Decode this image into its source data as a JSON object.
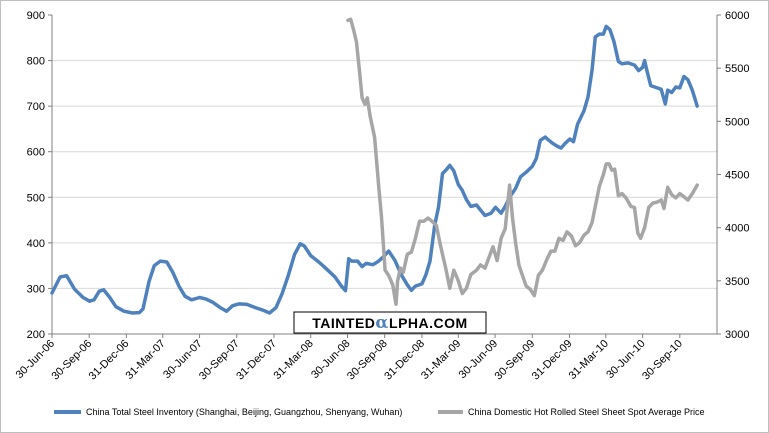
{
  "chart_data": {
    "type": "line",
    "title": "",
    "xlabel": "",
    "ylabel": "",
    "ylim": [
      200,
      900
    ],
    "y2lim": [
      3000,
      6000
    ],
    "yticks": [
      "900",
      "800",
      "700",
      "600",
      "500",
      "400",
      "300",
      "200"
    ],
    "y2ticks": [
      "6000",
      "5500",
      "5000",
      "4500",
      "4000",
      "3500",
      "3000"
    ],
    "x_range": [
      "2006-06-30",
      "2010-12-31"
    ],
    "grid": "horizontal",
    "legend_position": "bottom",
    "x_ticks": [
      {
        "date": "2006-06-30",
        "label": "30-Jun-06"
      },
      {
        "date": "2006-09-30",
        "label": "30-Sep-06"
      },
      {
        "date": "2006-12-31",
        "label": "31-Dec-06"
      },
      {
        "date": "2007-03-31",
        "label": "31-Mar-07"
      },
      {
        "date": "2007-06-30",
        "label": "30-Jun-07"
      },
      {
        "date": "2007-09-30",
        "label": "30-Sep-07"
      },
      {
        "date": "2007-12-31",
        "label": "31-Dec-07"
      },
      {
        "date": "2008-03-31",
        "label": "31-Mar-08"
      },
      {
        "date": "2008-06-30",
        "label": "30-Jun-08"
      },
      {
        "date": "2008-09-30",
        "label": "30-Sep-08"
      },
      {
        "date": "2008-12-31",
        "label": "31-Dec-08"
      },
      {
        "date": "2009-03-31",
        "label": "31-Mar-09"
      },
      {
        "date": "2009-06-30",
        "label": "30-Jun-09"
      },
      {
        "date": "2009-09-30",
        "label": "30-Sep-09"
      },
      {
        "date": "2009-12-31",
        "label": "31-Dec-09"
      },
      {
        "date": "2010-03-31",
        "label": "31-Mar-10"
      },
      {
        "date": "2010-06-30",
        "label": "30-Jun-10"
      },
      {
        "date": "2010-09-30",
        "label": "30-Sep-10"
      }
    ],
    "series": [
      {
        "name": "China Total Steel Inventory (Shanghai, Beijing, Guangzhou, Shenyang, Wuhan)",
        "axis": "left",
        "color": "#4f81bd",
        "points": [
          [
            "2006-06-30",
            290
          ],
          [
            "2006-07-20",
            325
          ],
          [
            "2006-08-05",
            328
          ],
          [
            "2006-08-25",
            298
          ],
          [
            "2006-09-15",
            280
          ],
          [
            "2006-10-01",
            272
          ],
          [
            "2006-10-12",
            275
          ],
          [
            "2006-10-25",
            294
          ],
          [
            "2006-11-05",
            297
          ],
          [
            "2006-11-20",
            280
          ],
          [
            "2006-12-05",
            260
          ],
          [
            "2006-12-25",
            250
          ],
          [
            "2007-01-15",
            246
          ],
          [
            "2007-02-01",
            247
          ],
          [
            "2007-02-10",
            255
          ],
          [
            "2007-02-25",
            315
          ],
          [
            "2007-03-10",
            350
          ],
          [
            "2007-03-25",
            360
          ],
          [
            "2007-04-10",
            358
          ],
          [
            "2007-04-25",
            335
          ],
          [
            "2007-05-10",
            305
          ],
          [
            "2007-05-25",
            283
          ],
          [
            "2007-06-10",
            275
          ],
          [
            "2007-06-30",
            280
          ],
          [
            "2007-07-15",
            277
          ],
          [
            "2007-08-01",
            270
          ],
          [
            "2007-08-20",
            258
          ],
          [
            "2007-09-05",
            250
          ],
          [
            "2007-09-20",
            262
          ],
          [
            "2007-10-05",
            266
          ],
          [
            "2007-10-25",
            265
          ],
          [
            "2007-11-15",
            258
          ],
          [
            "2007-12-05",
            252
          ],
          [
            "2007-12-20",
            246
          ],
          [
            "2008-01-05",
            258
          ],
          [
            "2008-01-20",
            288
          ],
          [
            "2008-02-05",
            330
          ],
          [
            "2008-02-20",
            375
          ],
          [
            "2008-03-05",
            398
          ],
          [
            "2008-03-15",
            393
          ],
          [
            "2008-03-31",
            372
          ],
          [
            "2008-04-20",
            358
          ],
          [
            "2008-05-10",
            342
          ],
          [
            "2008-05-30",
            325
          ],
          [
            "2008-06-15",
            305
          ],
          [
            "2008-06-25",
            295
          ],
          [
            "2008-07-03",
            365
          ],
          [
            "2008-07-10",
            360
          ],
          [
            "2008-07-25",
            360
          ],
          [
            "2008-08-05",
            348
          ],
          [
            "2008-08-15",
            355
          ],
          [
            "2008-09-01",
            352
          ],
          [
            "2008-09-15",
            360
          ],
          [
            "2008-09-25",
            368
          ],
          [
            "2008-10-10",
            382
          ],
          [
            "2008-10-25",
            362
          ],
          [
            "2008-11-10",
            330
          ],
          [
            "2008-11-25",
            308
          ],
          [
            "2008-12-05",
            296
          ],
          [
            "2008-12-15",
            305
          ],
          [
            "2008-12-31",
            310
          ],
          [
            "2009-01-10",
            330
          ],
          [
            "2009-01-20",
            360
          ],
          [
            "2009-02-01",
            440
          ],
          [
            "2009-02-10",
            478
          ],
          [
            "2009-02-20",
            552
          ],
          [
            "2009-03-01",
            560
          ],
          [
            "2009-03-10",
            570
          ],
          [
            "2009-03-20",
            558
          ],
          [
            "2009-03-31",
            528
          ],
          [
            "2009-04-10",
            515
          ],
          [
            "2009-04-20",
            495
          ],
          [
            "2009-05-01",
            480
          ],
          [
            "2009-05-15",
            483
          ],
          [
            "2009-05-25",
            472
          ],
          [
            "2009-06-05",
            460
          ],
          [
            "2009-06-20",
            465
          ],
          [
            "2009-07-01",
            478
          ],
          [
            "2009-07-15",
            465
          ],
          [
            "2009-07-25",
            480
          ],
          [
            "2009-08-05",
            500
          ],
          [
            "2009-08-20",
            520
          ],
          [
            "2009-09-01",
            545
          ],
          [
            "2009-09-15",
            555
          ],
          [
            "2009-09-30",
            568
          ],
          [
            "2009-10-10",
            585
          ],
          [
            "2009-10-20",
            625
          ],
          [
            "2009-11-01",
            632
          ],
          [
            "2009-11-10",
            625
          ],
          [
            "2009-11-20",
            618
          ],
          [
            "2009-12-01",
            612
          ],
          [
            "2009-12-10",
            608
          ],
          [
            "2009-12-20",
            618
          ],
          [
            "2010-01-01",
            628
          ],
          [
            "2010-01-10",
            622
          ],
          [
            "2010-01-20",
            660
          ],
          [
            "2010-02-05",
            690
          ],
          [
            "2010-02-15",
            720
          ],
          [
            "2010-02-25",
            780
          ],
          [
            "2010-03-05",
            852
          ],
          [
            "2010-03-15",
            858
          ],
          [
            "2010-03-25",
            858
          ],
          [
            "2010-04-01",
            875
          ],
          [
            "2010-04-10",
            868
          ],
          [
            "2010-04-20",
            842
          ],
          [
            "2010-05-01",
            798
          ],
          [
            "2010-05-10",
            793
          ],
          [
            "2010-05-25",
            795
          ],
          [
            "2010-06-10",
            790
          ],
          [
            "2010-06-20",
            778
          ],
          [
            "2010-06-30",
            785
          ],
          [
            "2010-07-05",
            800
          ],
          [
            "2010-07-10",
            780
          ],
          [
            "2010-07-20",
            745
          ],
          [
            "2010-08-05",
            740
          ],
          [
            "2010-08-15",
            737
          ],
          [
            "2010-08-25",
            705
          ],
          [
            "2010-08-31",
            735
          ],
          [
            "2010-09-10",
            730
          ],
          [
            "2010-09-20",
            742
          ],
          [
            "2010-09-30",
            740
          ],
          [
            "2010-10-10",
            765
          ],
          [
            "2010-10-20",
            758
          ],
          [
            "2010-10-31",
            735
          ],
          [
            "2010-11-12",
            700
          ]
        ]
      },
      {
        "name": "China Domestic Hot Rolled Steel Sheet Spot Average Price",
        "axis": "right",
        "color": "#a6a6a6",
        "points": [
          [
            "2008-07-01",
            5950
          ],
          [
            "2008-07-08",
            5960
          ],
          [
            "2008-07-15",
            5860
          ],
          [
            "2008-07-22",
            5750
          ],
          [
            "2008-07-29",
            5500
          ],
          [
            "2008-08-05",
            5220
          ],
          [
            "2008-08-12",
            5160
          ],
          [
            "2008-08-18",
            5220
          ],
          [
            "2008-08-25",
            5050
          ],
          [
            "2008-09-05",
            4850
          ],
          [
            "2008-09-15",
            4400
          ],
          [
            "2008-09-22",
            4100
          ],
          [
            "2008-10-01",
            3600
          ],
          [
            "2008-10-10",
            3550
          ],
          [
            "2008-10-20",
            3460
          ],
          [
            "2008-10-28",
            3280
          ],
          [
            "2008-11-01",
            3500
          ],
          [
            "2008-11-08",
            3620
          ],
          [
            "2008-11-15",
            3580
          ],
          [
            "2008-11-25",
            3750
          ],
          [
            "2008-12-05",
            3770
          ],
          [
            "2008-12-15",
            3900
          ],
          [
            "2008-12-25",
            4060
          ],
          [
            "2009-01-05",
            4060
          ],
          [
            "2009-01-15",
            4090
          ],
          [
            "2009-01-25",
            4060
          ],
          [
            "2009-02-05",
            4020
          ],
          [
            "2009-02-15",
            3830
          ],
          [
            "2009-02-28",
            3620
          ],
          [
            "2009-03-10",
            3430
          ],
          [
            "2009-03-20",
            3600
          ],
          [
            "2009-03-31",
            3500
          ],
          [
            "2009-04-10",
            3380
          ],
          [
            "2009-04-20",
            3430
          ],
          [
            "2009-05-01",
            3560
          ],
          [
            "2009-05-15",
            3600
          ],
          [
            "2009-05-25",
            3650
          ],
          [
            "2009-06-05",
            3620
          ],
          [
            "2009-06-15",
            3720
          ],
          [
            "2009-06-25",
            3820
          ],
          [
            "2009-07-05",
            3690
          ],
          [
            "2009-07-15",
            3900
          ],
          [
            "2009-07-25",
            3990
          ],
          [
            "2009-08-05",
            4400
          ],
          [
            "2009-08-12",
            4100
          ],
          [
            "2009-08-20",
            3850
          ],
          [
            "2009-08-28",
            3650
          ],
          [
            "2009-09-05",
            3560
          ],
          [
            "2009-09-15",
            3450
          ],
          [
            "2009-09-25",
            3420
          ],
          [
            "2009-10-05",
            3360
          ],
          [
            "2009-10-15",
            3550
          ],
          [
            "2009-10-25",
            3600
          ],
          [
            "2009-11-05",
            3700
          ],
          [
            "2009-11-15",
            3780
          ],
          [
            "2009-11-25",
            3780
          ],
          [
            "2009-12-05",
            3900
          ],
          [
            "2009-12-15",
            3880
          ],
          [
            "2009-12-25",
            3960
          ],
          [
            "2010-01-05",
            3920
          ],
          [
            "2010-01-15",
            3830
          ],
          [
            "2010-01-25",
            3860
          ],
          [
            "2010-02-05",
            3930
          ],
          [
            "2010-02-15",
            3960
          ],
          [
            "2010-02-25",
            4050
          ],
          [
            "2010-03-05",
            4200
          ],
          [
            "2010-03-15",
            4390
          ],
          [
            "2010-03-25",
            4500
          ],
          [
            "2010-04-01",
            4600
          ],
          [
            "2010-04-08",
            4600
          ],
          [
            "2010-04-15",
            4540
          ],
          [
            "2010-04-22",
            4550
          ],
          [
            "2010-05-01",
            4300
          ],
          [
            "2010-05-10",
            4320
          ],
          [
            "2010-05-20",
            4280
          ],
          [
            "2010-06-01",
            4200
          ],
          [
            "2010-06-10",
            4190
          ],
          [
            "2010-06-18",
            3950
          ],
          [
            "2010-06-25",
            3900
          ],
          [
            "2010-07-05",
            4000
          ],
          [
            "2010-07-15",
            4190
          ],
          [
            "2010-07-25",
            4230
          ],
          [
            "2010-08-05",
            4240
          ],
          [
            "2010-08-15",
            4260
          ],
          [
            "2010-08-22",
            4180
          ],
          [
            "2010-08-31",
            4380
          ],
          [
            "2010-09-10",
            4310
          ],
          [
            "2010-09-20",
            4280
          ],
          [
            "2010-09-30",
            4320
          ],
          [
            "2010-10-10",
            4290
          ],
          [
            "2010-10-20",
            4260
          ],
          [
            "2010-10-31",
            4320
          ],
          [
            "2010-11-12",
            4400
          ]
        ]
      }
    ]
  },
  "watermark": {
    "text_part1": "TAINTED",
    "text_logo_letter": "α",
    "text_part2": "LPHA.COM"
  }
}
